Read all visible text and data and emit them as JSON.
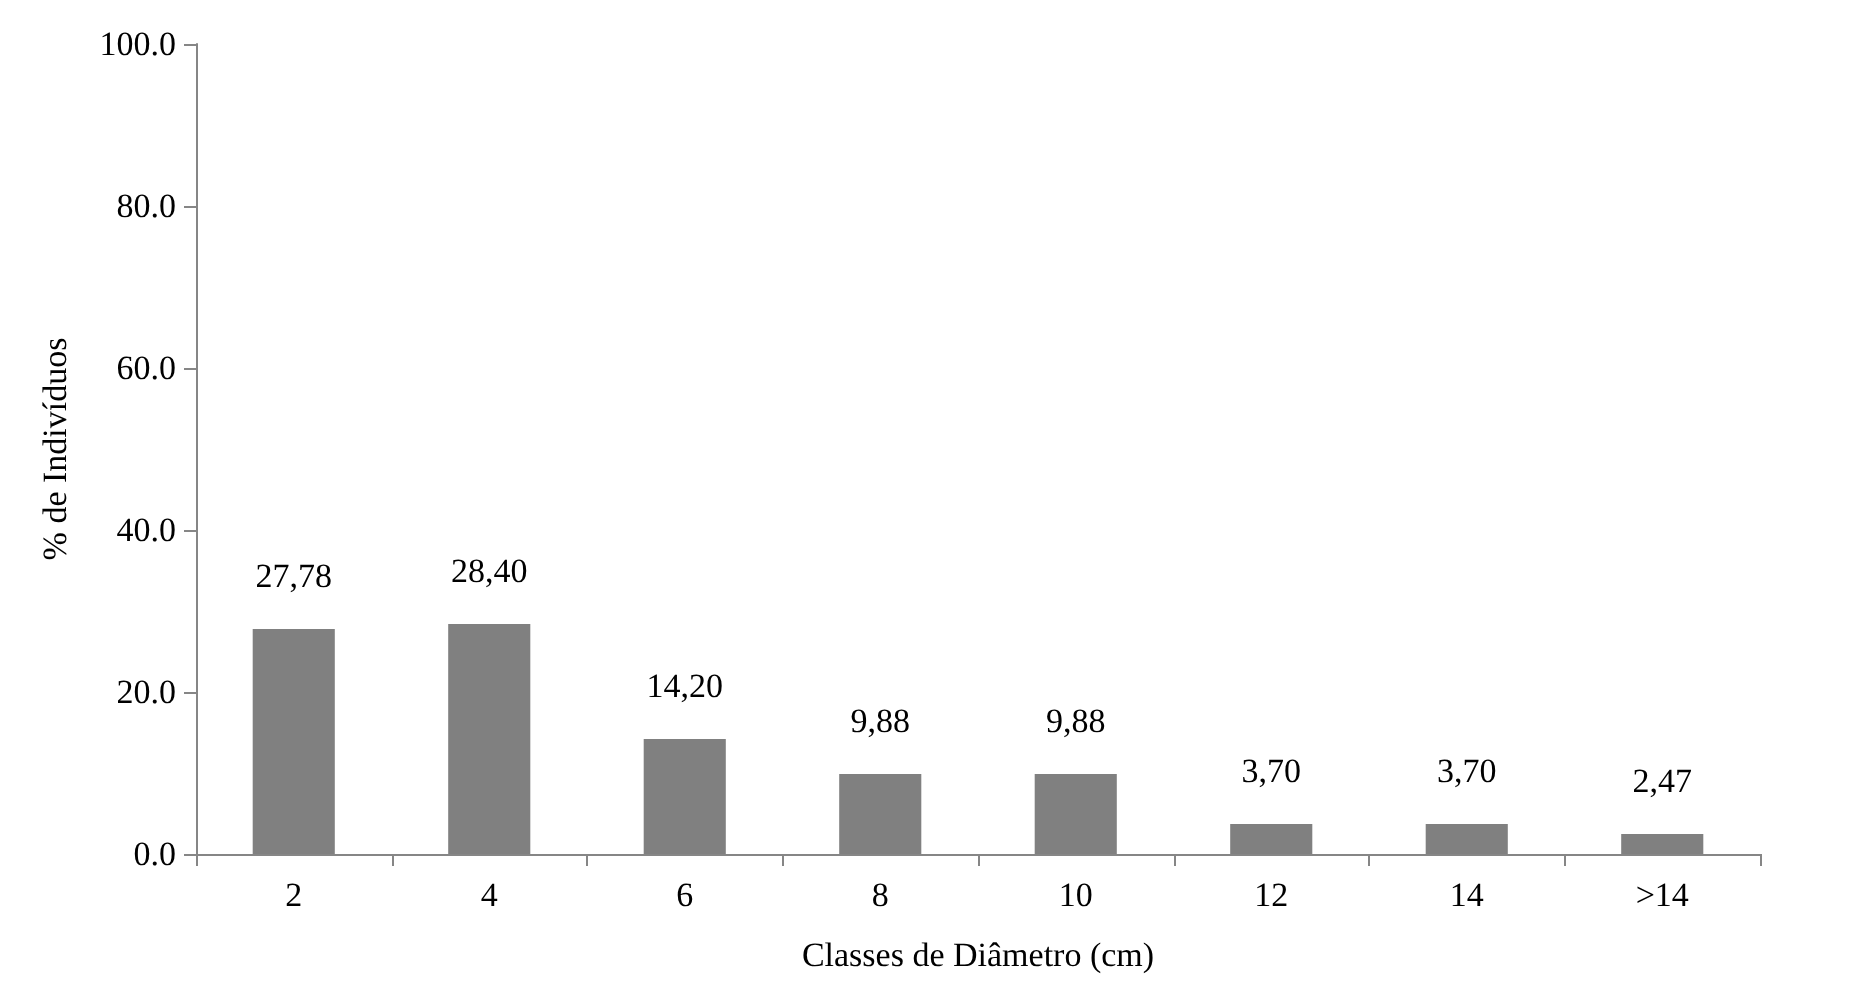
{
  "chart_data": {
    "type": "bar",
    "xlabel": "Classes de Diâmetro (cm)",
    "ylabel": "% de Indivíduos",
    "categories": [
      "2",
      "4",
      "6",
      "8",
      "10",
      "12",
      "14",
      ">14"
    ],
    "values": [
      27.78,
      28.4,
      14.2,
      9.88,
      9.88,
      3.7,
      3.7,
      2.47
    ],
    "value_labels": [
      "27,78",
      "28,40",
      "14,20",
      "9,88",
      "9,88",
      "3,70",
      "3,70",
      "2,47"
    ],
    "color": "#808080",
    "ylim": [
      0,
      100
    ],
    "yticks": [
      {
        "value": 0,
        "label": "0.0"
      },
      {
        "value": 20,
        "label": "20.0"
      },
      {
        "value": 40,
        "label": "40.0"
      },
      {
        "value": 60,
        "label": "60.0"
      },
      {
        "value": 80,
        "label": "80.0"
      },
      {
        "value": 100,
        "label": "100.0"
      }
    ],
    "grid": false
  }
}
